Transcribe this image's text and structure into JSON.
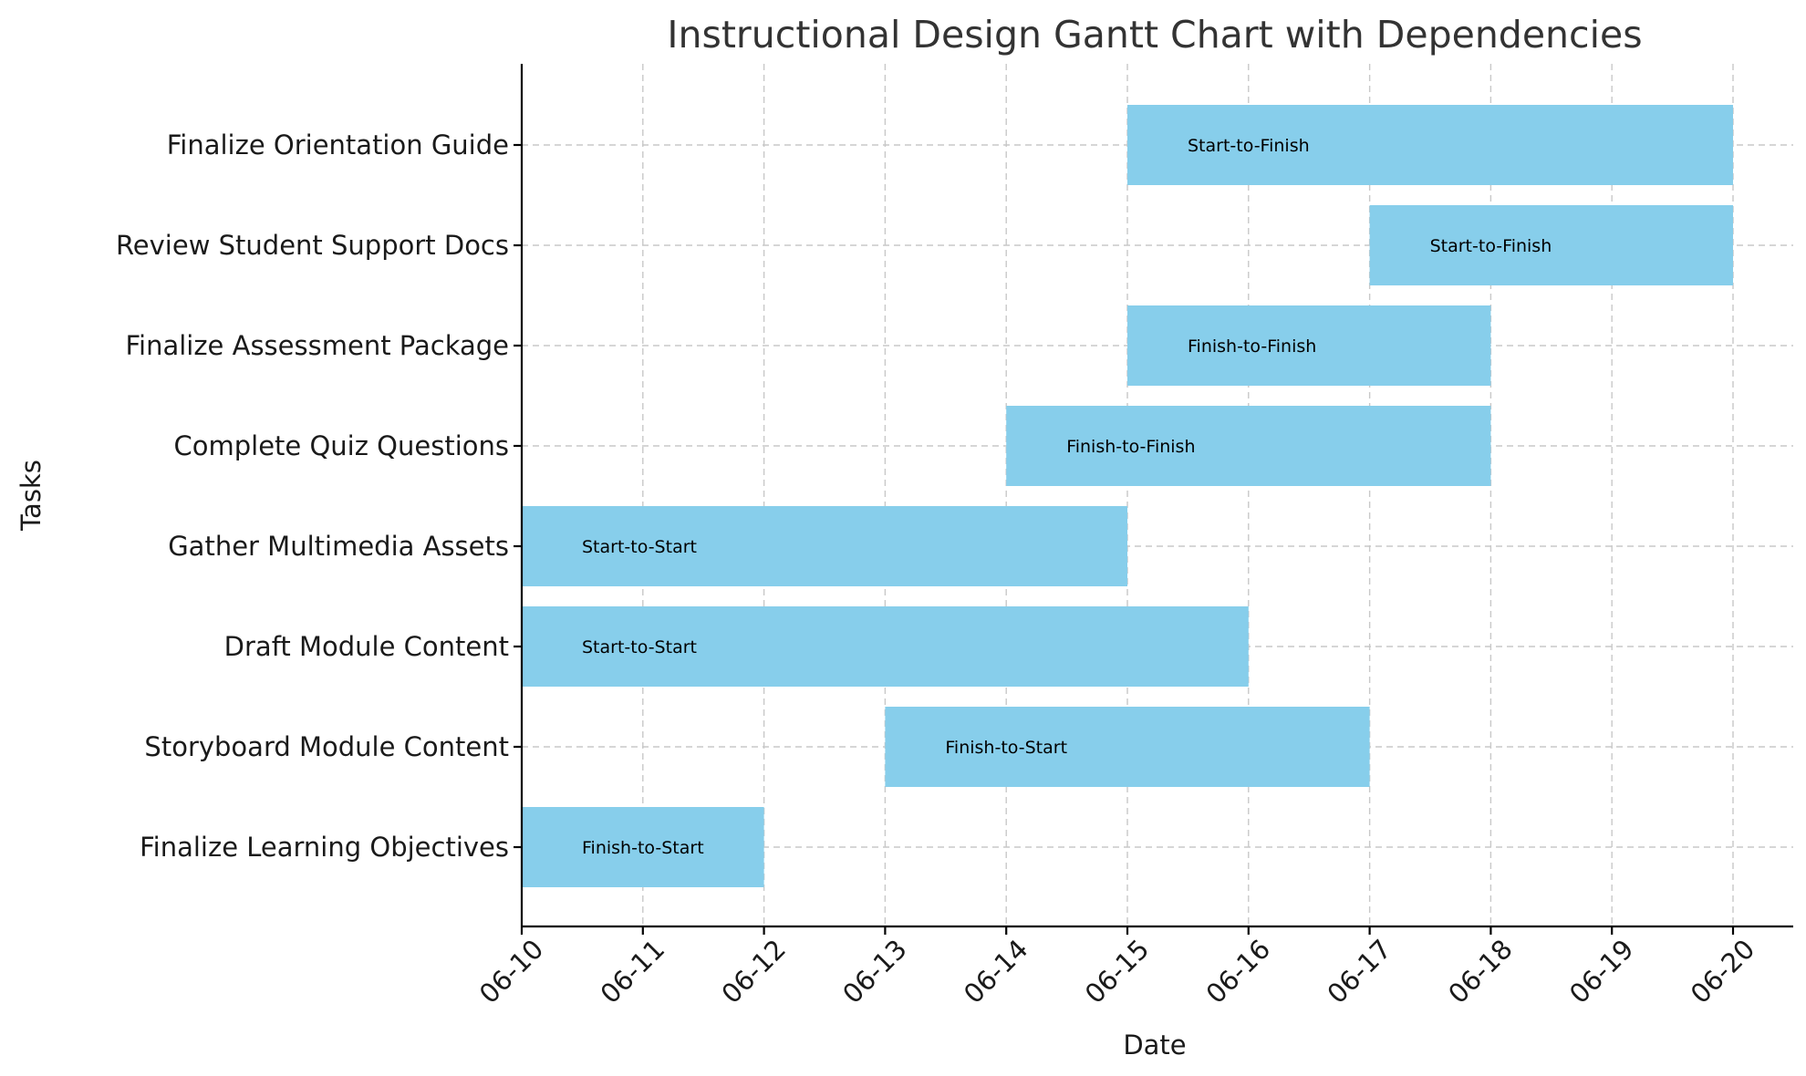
{
  "chart_data": {
    "type": "gantt",
    "title": "Instructional Design Gantt Chart with Dependencies",
    "xlabel": "Date",
    "ylabel": "Tasks",
    "x_ticks": [
      "06-10",
      "06-11",
      "06-12",
      "06-13",
      "06-14",
      "06-15",
      "06-16",
      "06-17",
      "06-18",
      "06-19",
      "06-20"
    ],
    "xlim": [
      "06-10",
      "06-20"
    ],
    "grid": true,
    "bar_color": "#87CEEB",
    "tasks": [
      {
        "name": "Finalize Learning Objectives",
        "start": "06-10",
        "end": "06-12",
        "dependency": "Finish-to-Start"
      },
      {
        "name": "Storyboard Module Content",
        "start": "06-13",
        "end": "06-17",
        "dependency": "Finish-to-Start"
      },
      {
        "name": "Draft Module Content",
        "start": "06-10",
        "end": "06-16",
        "dependency": "Start-to-Start"
      },
      {
        "name": "Gather Multimedia Assets",
        "start": "06-10",
        "end": "06-15",
        "dependency": "Start-to-Start"
      },
      {
        "name": "Complete Quiz Questions",
        "start": "06-14",
        "end": "06-18",
        "dependency": "Finish-to-Finish"
      },
      {
        "name": "Finalize Assessment Package",
        "start": "06-15",
        "end": "06-18",
        "dependency": "Finish-to-Finish"
      },
      {
        "name": "Review Student Support Docs",
        "start": "06-17",
        "end": "06-20",
        "dependency": "Start-to-Finish"
      },
      {
        "name": "Finalize Orientation Guide",
        "start": "06-15",
        "end": "06-20",
        "dependency": "Start-to-Finish"
      }
    ]
  }
}
